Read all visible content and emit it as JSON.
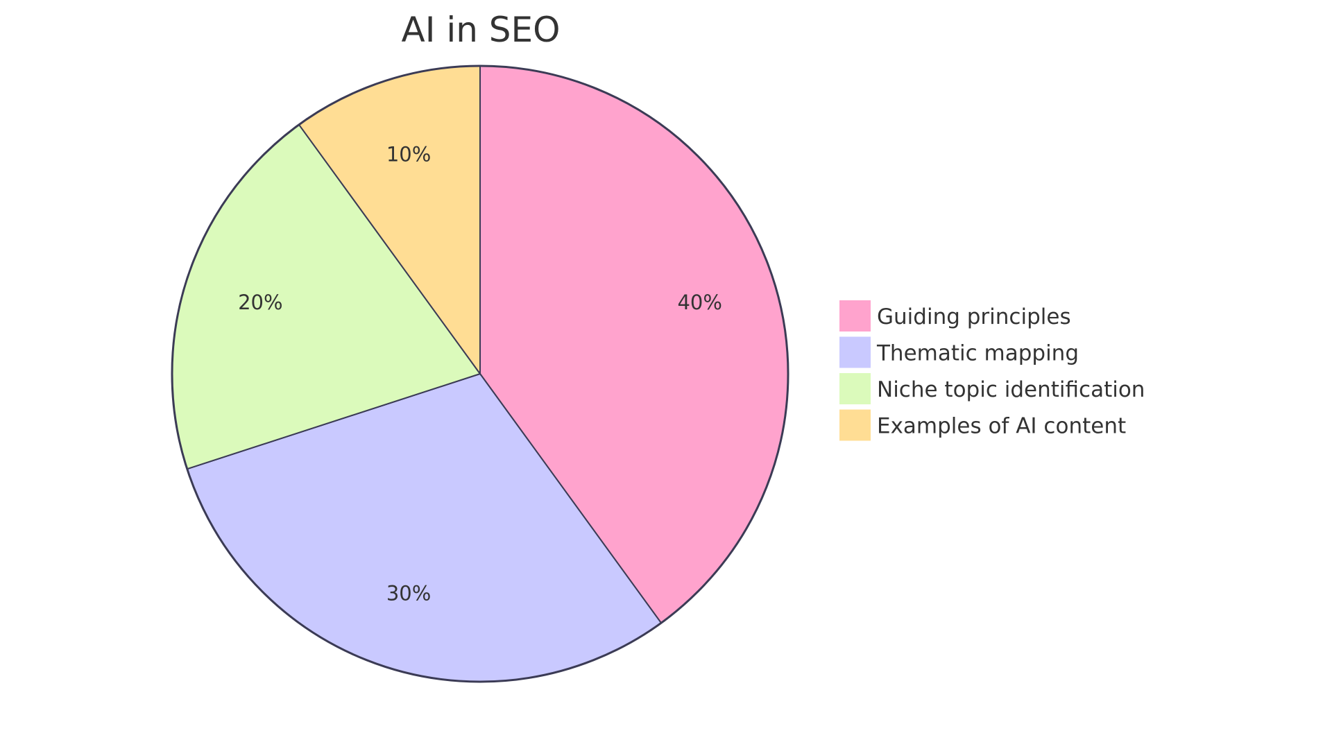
{
  "chart_data": {
    "type": "pie",
    "title": "AI in SEO",
    "categories": [
      "Guiding principles",
      "Thematic mapping",
      "Niche topic identification",
      "Examples of AI content"
    ],
    "values": [
      40,
      30,
      20,
      10
    ],
    "labels": [
      "40%",
      "30%",
      "20%",
      "10%"
    ],
    "colors": [
      "#ffa3cd",
      "#c9c9ff",
      "#dbfabb",
      "#ffdd94"
    ],
    "stroke_color": "#3b3b55",
    "start": "top",
    "direction": "clockwise",
    "legend_placement": "right"
  }
}
